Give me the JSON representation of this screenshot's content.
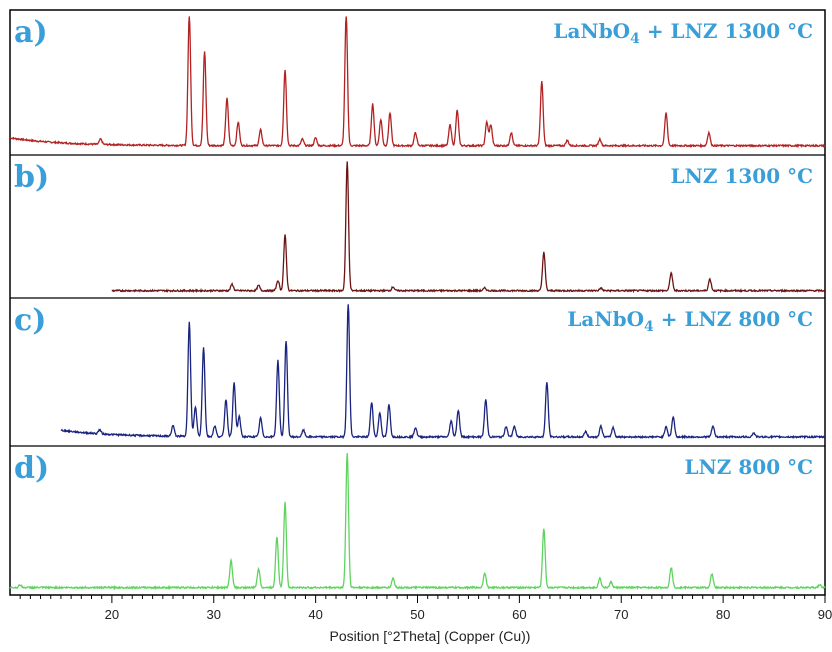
{
  "chart_data": {
    "type": "line",
    "xlabel": "Position [°2Theta] (Copper (Cu))",
    "xlim": [
      10,
      90
    ],
    "x_ticks": [
      20,
      30,
      40,
      50,
      60,
      70,
      80,
      90
    ],
    "grid": false,
    "panels": [
      {
        "label": "a)",
        "title": {
          "main": "LaNbO",
          "sub": "4",
          "rest": " + LNZ  1300 °C"
        },
        "series_color": "#b22222",
        "x_start": 10,
        "baseline": 0.06,
        "peaks": [
          {
            "x": 18.9,
            "h": 0.04
          },
          {
            "x": 27.6,
            "h": 1.0
          },
          {
            "x": 29.1,
            "h": 0.72
          },
          {
            "x": 31.3,
            "h": 0.36
          },
          {
            "x": 32.4,
            "h": 0.18
          },
          {
            "x": 34.6,
            "h": 0.12
          },
          {
            "x": 37.0,
            "h": 0.58
          },
          {
            "x": 38.7,
            "h": 0.05
          },
          {
            "x": 40.0,
            "h": 0.06
          },
          {
            "x": 43.0,
            "h": 1.0
          },
          {
            "x": 45.6,
            "h": 0.32
          },
          {
            "x": 46.4,
            "h": 0.2
          },
          {
            "x": 47.3,
            "h": 0.25
          },
          {
            "x": 49.8,
            "h": 0.1
          },
          {
            "x": 53.2,
            "h": 0.16
          },
          {
            "x": 53.9,
            "h": 0.27
          },
          {
            "x": 56.8,
            "h": 0.18
          },
          {
            "x": 57.2,
            "h": 0.16
          },
          {
            "x": 59.2,
            "h": 0.1
          },
          {
            "x": 62.2,
            "h": 0.49
          },
          {
            "x": 64.7,
            "h": 0.04
          },
          {
            "x": 67.9,
            "h": 0.05
          },
          {
            "x": 74.4,
            "h": 0.25
          },
          {
            "x": 78.6,
            "h": 0.1
          }
        ]
      },
      {
        "label": "b)",
        "title": {
          "main": "LNZ  1300 °C",
          "sub": "",
          "rest": ""
        },
        "series_color": "#6b1414",
        "x_start": 20,
        "baseline": 0.0,
        "peaks": [
          {
            "x": 31.8,
            "h": 0.05
          },
          {
            "x": 34.4,
            "h": 0.04
          },
          {
            "x": 36.3,
            "h": 0.08
          },
          {
            "x": 37.0,
            "h": 0.43
          },
          {
            "x": 43.1,
            "h": 1.0
          },
          {
            "x": 47.6,
            "h": 0.03
          },
          {
            "x": 56.6,
            "h": 0.02
          },
          {
            "x": 62.4,
            "h": 0.3
          },
          {
            "x": 68.0,
            "h": 0.02
          },
          {
            "x": 74.9,
            "h": 0.14
          },
          {
            "x": 78.7,
            "h": 0.09
          }
        ]
      },
      {
        "label": "c)",
        "title": {
          "main": "LaNbO",
          "sub": "4",
          "rest": " + LNZ  800 °C"
        },
        "series_color": "#1a237e",
        "x_start": 15,
        "baseline": 0.05,
        "peaks": [
          {
            "x": 18.8,
            "h": 0.03
          },
          {
            "x": 26.0,
            "h": 0.08
          },
          {
            "x": 27.6,
            "h": 0.85
          },
          {
            "x": 28.2,
            "h": 0.22
          },
          {
            "x": 29.0,
            "h": 0.67
          },
          {
            "x": 30.1,
            "h": 0.08
          },
          {
            "x": 31.2,
            "h": 0.28
          },
          {
            "x": 32.0,
            "h": 0.4
          },
          {
            "x": 32.5,
            "h": 0.15
          },
          {
            "x": 34.6,
            "h": 0.14
          },
          {
            "x": 36.3,
            "h": 0.57
          },
          {
            "x": 37.1,
            "h": 0.72
          },
          {
            "x": 38.8,
            "h": 0.05
          },
          {
            "x": 43.2,
            "h": 1.0
          },
          {
            "x": 45.5,
            "h": 0.26
          },
          {
            "x": 46.3,
            "h": 0.18
          },
          {
            "x": 47.2,
            "h": 0.24
          },
          {
            "x": 49.8,
            "h": 0.07
          },
          {
            "x": 53.3,
            "h": 0.12
          },
          {
            "x": 54.0,
            "h": 0.2
          },
          {
            "x": 56.7,
            "h": 0.28
          },
          {
            "x": 58.7,
            "h": 0.08
          },
          {
            "x": 59.5,
            "h": 0.08
          },
          {
            "x": 62.7,
            "h": 0.41
          },
          {
            "x": 66.5,
            "h": 0.04
          },
          {
            "x": 68.0,
            "h": 0.08
          },
          {
            "x": 69.2,
            "h": 0.07
          },
          {
            "x": 74.4,
            "h": 0.08
          },
          {
            "x": 75.1,
            "h": 0.15
          },
          {
            "x": 79.0,
            "h": 0.08
          },
          {
            "x": 83.0,
            "h": 0.03
          }
        ]
      },
      {
        "label": "d)",
        "title": {
          "main": "LNZ  800 °C",
          "sub": "",
          "rest": ""
        },
        "series_color": "#5fd35f",
        "x_start": 10,
        "baseline": 0.0,
        "peaks": [
          {
            "x": 11.0,
            "h": 0.02
          },
          {
            "x": 31.7,
            "h": 0.2
          },
          {
            "x": 34.4,
            "h": 0.14
          },
          {
            "x": 36.2,
            "h": 0.38
          },
          {
            "x": 37.0,
            "h": 0.63
          },
          {
            "x": 43.1,
            "h": 1.0
          },
          {
            "x": 47.6,
            "h": 0.07
          },
          {
            "x": 56.6,
            "h": 0.11
          },
          {
            "x": 62.4,
            "h": 0.44
          },
          {
            "x": 67.9,
            "h": 0.07
          },
          {
            "x": 69.0,
            "h": 0.04
          },
          {
            "x": 74.9,
            "h": 0.15
          },
          {
            "x": 78.9,
            "h": 0.1
          },
          {
            "x": 89.5,
            "h": 0.02
          }
        ]
      }
    ]
  },
  "colors": {
    "panel_text": "#3a9fd8",
    "frame": "#000000",
    "background": "#ffffff"
  }
}
